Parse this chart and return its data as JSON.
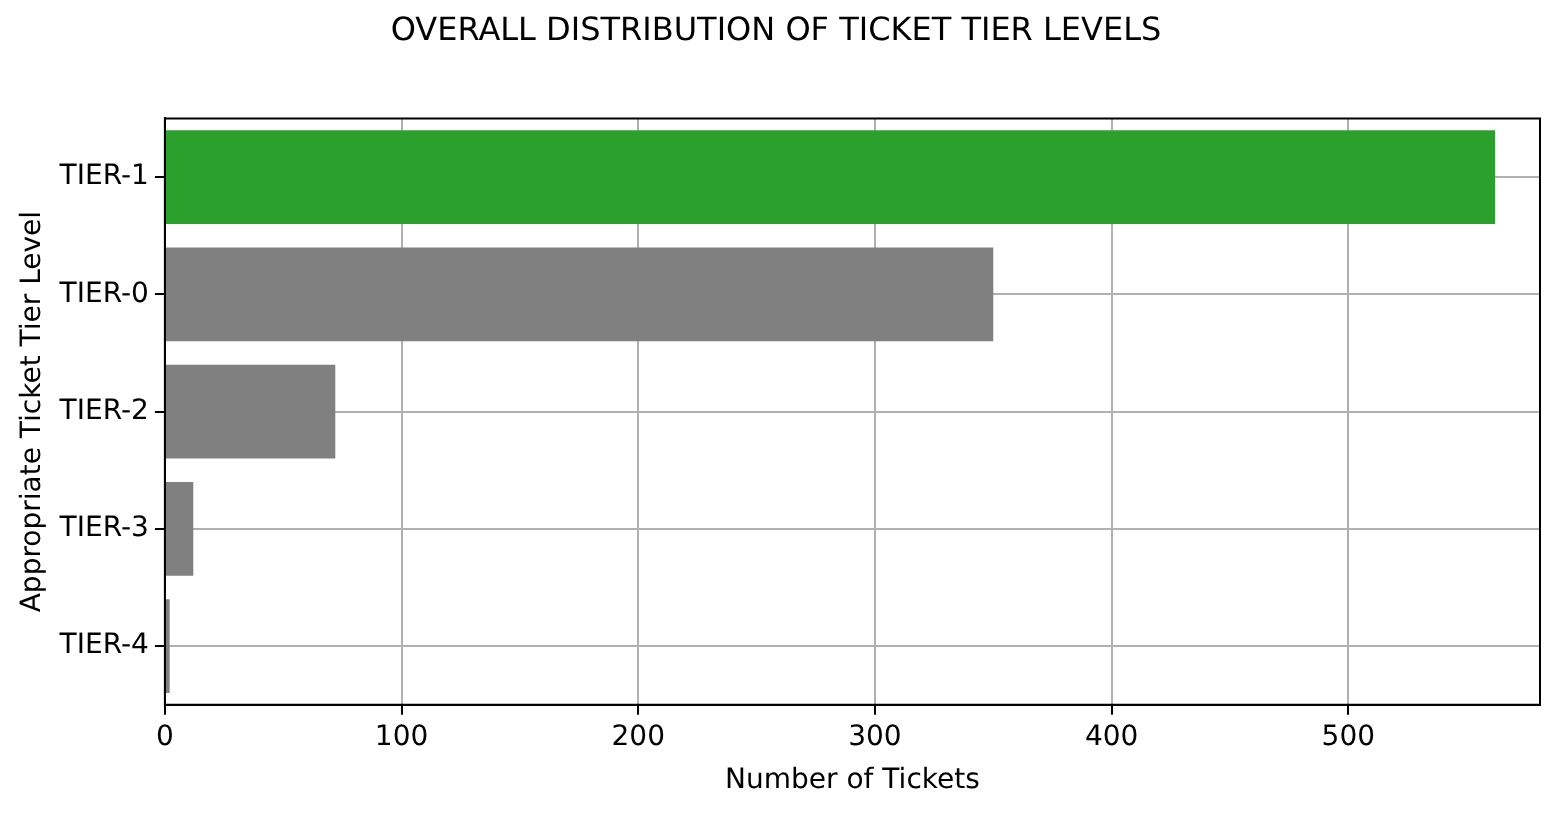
{
  "chart_data": {
    "type": "bar",
    "orientation": "horizontal",
    "title": "OVERALL DISTRIBUTION OF TICKET TIER LEVELS",
    "xlabel": "Number of Tickets",
    "ylabel": "Appropriate Ticket Tier Level",
    "categories": [
      "TIER-1",
      "TIER-0",
      "TIER-2",
      "TIER-3",
      "TIER-4"
    ],
    "values": [
      562,
      350,
      72,
      12,
      2
    ],
    "colors": [
      "#2ca02c",
      "#808080",
      "#808080",
      "#808080",
      "#808080"
    ],
    "xlim": [
      0,
      581
    ],
    "xticks": [
      0,
      100,
      200,
      300,
      400,
      500
    ],
    "grid": true
  }
}
